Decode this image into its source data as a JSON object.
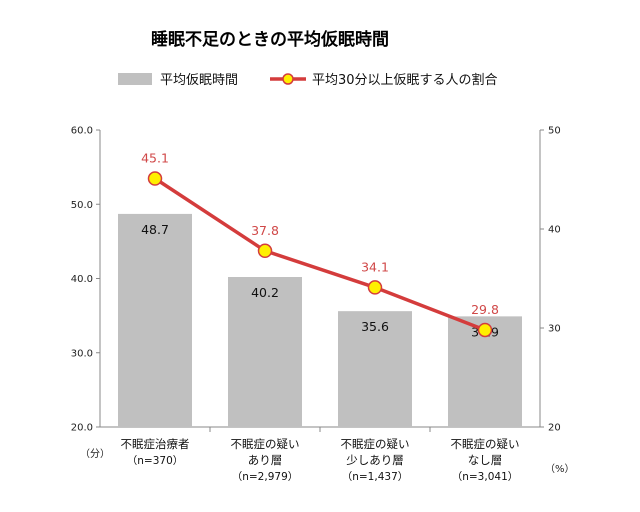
{
  "chart_data": {
    "type": "bar+line",
    "title": "睡眠不足のときの平均仮眠時間",
    "categories": [
      {
        "lines": [
          "不眠症治療者"
        ],
        "n": "（n=370）"
      },
      {
        "lines": [
          "不眠症の疑い",
          "あり層"
        ],
        "n": "（n=2,979）"
      },
      {
        "lines": [
          "不眠症の疑い",
          "少しあり層"
        ],
        "n": "（n=1,437）"
      },
      {
        "lines": [
          "不眠症の疑い",
          "なし層"
        ],
        "n": "（n=3,041）"
      }
    ],
    "series": [
      {
        "name": "平均仮眠時間",
        "type": "bar",
        "axis": "left",
        "values": [
          48.7,
          40.2,
          35.6,
          34.9
        ],
        "labels": [
          "48.7",
          "40.2",
          "35.6",
          "34.9"
        ],
        "color": "#c0c0c0"
      },
      {
        "name": "平均30分以上仮眠する人の割合",
        "type": "line",
        "axis": "right",
        "values": [
          45.1,
          37.8,
          34.1,
          29.8
        ],
        "labels": [
          "45.1",
          "37.8",
          "34.1",
          "29.8"
        ],
        "color": "#d43c3c",
        "marker_color": "#ffef00"
      }
    ],
    "left_axis": {
      "min": 20,
      "max": 60,
      "ticks": [
        "60.0",
        "50.0",
        "40.0",
        "30.0",
        "20.0"
      ],
      "tick_values": [
        60,
        50,
        40,
        30,
        20
      ],
      "unit": "（分）"
    },
    "right_axis": {
      "min": 20,
      "max": 50,
      "ticks": [
        "50",
        "40",
        "30",
        "20"
      ],
      "tick_values": [
        50,
        40,
        30,
        20
      ],
      "unit": "（%）"
    },
    "grid": false,
    "legend_position": "top"
  }
}
